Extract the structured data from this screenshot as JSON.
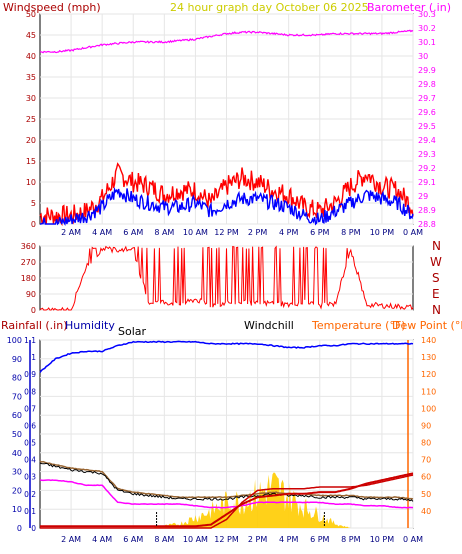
{
  "header": {
    "windspeed_label": "Windspeed (mph)",
    "title": "24 hour graph day  October 06 2025",
    "barometer_label": "Barometer (.in)"
  },
  "direction_labels": [
    "N",
    "W",
    "S",
    "E",
    "N"
  ],
  "lower_header": {
    "rainfall_label": "Rainfall (.in)",
    "humidity_label": "Humidity",
    "solar_label": "Solar",
    "windchill_label": "Windchill",
    "temperature_label": "Temperature (°F)",
    "dewpoint_label": "Dew Point (°F)"
  },
  "colors": {
    "background": "#ffffff",
    "wind_gust": "#ff0000",
    "wind_avg": "#0000ff",
    "barometer": "#ff00ff",
    "direction": "#ff0000",
    "humidity": "#0000ff",
    "temperature": "#cc0000",
    "dewpoint": "#ff00ff",
    "windchill": "#000000",
    "solar": "#ffcc00",
    "rain": "#cc0000",
    "heat": "#996633",
    "axis_left": "#aa0000",
    "axis_right": "#ff00ff",
    "axis_temp": "#ff6600",
    "axis_blue": "#0000aa"
  },
  "chart_data": [
    {
      "type": "line",
      "title": "24 hour graph day  October 06 2025",
      "x_ticks": [
        "2 AM",
        "4 AM",
        "6 AM",
        "8 AM",
        "10 AM",
        "12 PM",
        "2 PM",
        "4 PM",
        "6 PM",
        "8 PM",
        "10 PM",
        "0 AM"
      ],
      "y_left": {
        "label": "Windspeed (mph)",
        "lim": [
          0,
          50
        ],
        "ticks": [
          0,
          5,
          10,
          15,
          20,
          25,
          30,
          35,
          40,
          45,
          50
        ]
      },
      "y_right": {
        "label": "Barometer (.in)",
        "lim": [
          28.8,
          30.3
        ],
        "ticks": [
          "28.8",
          "28.9",
          "29",
          "29.1",
          "29.2",
          "29.3",
          "29.4",
          "29.5",
          "29.6",
          "29.7",
          "29.8",
          "29.9",
          "30",
          "30.1",
          "30.2",
          "30.3"
        ]
      },
      "x": [
        0,
        1,
        2,
        3,
        4,
        5,
        6,
        7,
        8,
        9,
        10,
        11,
        12,
        13,
        14,
        15,
        16,
        17,
        18,
        19,
        20,
        21,
        22,
        23,
        24
      ],
      "series": [
        {
          "name": "gust",
          "values": [
            2,
            2,
            2,
            3,
            6,
            12,
            10,
            9,
            7,
            8,
            8,
            5,
            9,
            11,
            10,
            8,
            7,
            4,
            3,
            5,
            9,
            12,
            9,
            8,
            4
          ]
        },
        {
          "name": "avg",
          "values": [
            0,
            0,
            1,
            2,
            4,
            8,
            6,
            5,
            4,
            4,
            5,
            3,
            5,
            6,
            6,
            5,
            4,
            2,
            1,
            3,
            5,
            7,
            6,
            5,
            2
          ]
        },
        {
          "name": "barometer",
          "values": [
            30.03,
            30.03,
            30.04,
            30.06,
            30.08,
            30.09,
            30.1,
            30.1,
            30.1,
            30.11,
            30.12,
            30.14,
            30.16,
            30.17,
            30.17,
            30.16,
            30.15,
            30.15,
            30.15,
            30.16,
            30.16,
            30.16,
            30.16,
            30.17,
            30.18
          ]
        }
      ]
    },
    {
      "type": "line",
      "y_left": {
        "lim": [
          0,
          360
        ],
        "ticks": [
          0,
          90,
          180,
          270,
          360
        ]
      },
      "x": [
        0,
        1,
        2,
        3,
        4,
        5,
        6,
        7,
        8,
        9,
        10,
        11,
        12,
        13,
        14,
        15,
        16,
        17,
        18,
        19,
        20,
        21,
        22,
        23,
        24
      ],
      "series": [
        {
          "name": "direction",
          "values": [
            0,
            0,
            0,
            260,
            355,
            345,
            350,
            40,
            45,
            30,
            60,
            25,
            40,
            45,
            35,
            40,
            30,
            45,
            25,
            35,
            350,
            30,
            25,
            20,
            15
          ]
        }
      ]
    },
    {
      "type": "line",
      "x_ticks": [
        "2 AM",
        "4 AM",
        "6 AM",
        "8 AM",
        "10 AM",
        "12 PM",
        "2 PM",
        "4 PM",
        "6 PM",
        "8 PM",
        "10 PM",
        "0 AM"
      ],
      "y_left": {
        "label": "Rainfall (.in)",
        "lim": [
          0,
          1.1
        ],
        "ticks": [
          "0",
          "0.1",
          "0.2",
          "0.3",
          "0.4",
          "0.5",
          "0.6",
          "0.7",
          "0.8",
          "0.9",
          "1",
          "1.1"
        ]
      },
      "y_humidity": {
        "label": "Humidity",
        "lim": [
          0,
          100
        ],
        "ticks": [
          0,
          10,
          20,
          30,
          40,
          50,
          60,
          70,
          80,
          90,
          100
        ]
      },
      "y_right": {
        "label": "Temperature (°F) Dew Point (°F)",
        "lim": [
          30,
          140
        ],
        "ticks": [
          40,
          50,
          60,
          70,
          80,
          90,
          100,
          110,
          120,
          130,
          140
        ]
      },
      "x": [
        0,
        1,
        2,
        3,
        4,
        5,
        6,
        7,
        8,
        9,
        10,
        11,
        12,
        13,
        14,
        15,
        16,
        17,
        18,
        19,
        20,
        21,
        22,
        23,
        24
      ],
      "series": [
        {
          "name": "humidity",
          "values": [
            83,
            90,
            93,
            94,
            94,
            97,
            99,
            99,
            99,
            99,
            99,
            98,
            98,
            98,
            98,
            97,
            96,
            96,
            97,
            97,
            98,
            98,
            98,
            98,
            98
          ]
        },
        {
          "name": "temperature",
          "values": [
            31,
            31,
            31,
            31,
            31,
            31,
            31,
            31,
            31,
            31,
            31,
            32,
            38,
            44,
            48,
            49,
            50,
            50,
            51,
            51,
            53,
            56,
            58,
            60,
            62
          ]
        },
        {
          "name": "dewpoint",
          "values": [
            58,
            58,
            57,
            55,
            55,
            45,
            44,
            44,
            44,
            44,
            43,
            42,
            42,
            43,
            45,
            45,
            45,
            45,
            45,
            44,
            44,
            43,
            43,
            42,
            42
          ]
        },
        {
          "name": "windchill",
          "values": [
            68,
            66,
            64,
            63,
            62,
            52,
            50,
            49,
            48,
            47,
            47,
            47,
            47,
            48,
            49,
            50,
            49,
            49,
            48,
            48,
            48,
            47,
            47,
            47,
            46
          ]
        },
        {
          "name": "heat",
          "values": [
            69,
            67,
            65,
            64,
            63,
            53,
            51,
            50,
            49,
            48,
            48,
            48,
            48,
            49,
            50,
            51,
            50,
            50,
            49,
            49,
            49,
            48,
            48,
            48,
            47
          ]
        },
        {
          "name": "rain",
          "values": [
            0,
            0,
            0,
            0,
            0,
            0,
            0,
            0,
            0,
            0,
            0,
            0,
            0.05,
            0.15,
            0.22,
            0.23,
            0.23,
            0.23,
            0.24,
            0.24,
            0.24,
            0.25,
            0.27,
            0.29,
            0.31
          ]
        },
        {
          "name": "solar",
          "values": [
            0,
            0,
            0,
            0,
            0,
            0,
            0,
            0,
            0.01,
            0.02,
            0.05,
            0.08,
            0.12,
            0.13,
            0.16,
            0.2,
            0.15,
            0.1,
            0.06,
            0.02,
            0,
            0,
            0,
            0,
            0
          ]
        }
      ]
    }
  ]
}
